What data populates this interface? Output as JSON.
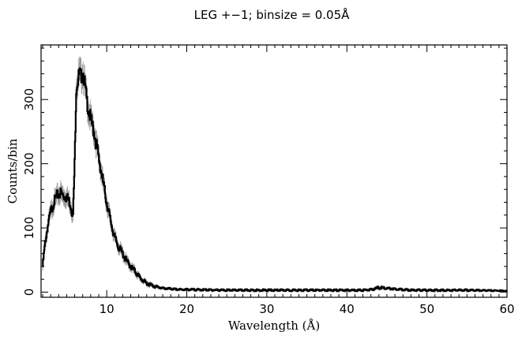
{
  "chart_data": {
    "type": "line",
    "title": "LEG +−1; binsize = 0.05Å",
    "xlabel": "Wavelength (Å)",
    "ylabel": "Counts/bin",
    "xlim": [
      1.8,
      60
    ],
    "ylim": [
      -8,
      385
    ],
    "xticks": [
      10,
      20,
      30,
      40,
      50,
      60
    ],
    "yticks": [
      0,
      100,
      200,
      300
    ],
    "x_minor_step": 1,
    "y_minor_step": 20,
    "grid": false,
    "binsize": 0.05,
    "series": [
      {
        "x": [
          2.0,
          2.3,
          2.6,
          3.0,
          3.4,
          3.8,
          4.2,
          4.6,
          5.0,
          5.4,
          5.8,
          6.0,
          6.2,
          6.4,
          6.6,
          6.8,
          7.0,
          7.2,
          7.5,
          7.8,
          8.0,
          8.5,
          9.0,
          9.5,
          10.0,
          10.5,
          11.0,
          11.5,
          12.0,
          12.5,
          13.0,
          13.5,
          14.0,
          14.5,
          15.0,
          16.0,
          17.0,
          18.0,
          19.0,
          20.0,
          25.0,
          30.0,
          35.0,
          40.0,
          42.0,
          43.0,
          44.0,
          45.0,
          46.0,
          47.0,
          48.0,
          50.0,
          55.0,
          60.0
        ],
        "y": [
          40,
          75,
          100,
          125,
          140,
          150,
          155,
          150,
          148,
          140,
          120,
          200,
          320,
          330,
          340,
          335,
          345,
          330,
          300,
          280,
          270,
          245,
          210,
          175,
          140,
          110,
          85,
          70,
          60,
          48,
          40,
          33,
          25,
          18,
          14,
          9,
          6,
          5,
          4,
          4,
          3,
          3,
          3,
          3,
          3,
          4,
          7,
          6,
          5,
          4,
          3,
          3,
          3,
          2
        ],
        "err": [
          7,
          9,
          10,
          11,
          12,
          12,
          13,
          12,
          12,
          12,
          11,
          14,
          18,
          18,
          19,
          18,
          19,
          18,
          17,
          17,
          16,
          16,
          15,
          13,
          12,
          11,
          9,
          8,
          8,
          7,
          6,
          6,
          5,
          4,
          4,
          3,
          2,
          2,
          2,
          2,
          2,
          2,
          2,
          2,
          2,
          2,
          3,
          2,
          2,
          2,
          2,
          2,
          2,
          1
        ]
      }
    ]
  }
}
